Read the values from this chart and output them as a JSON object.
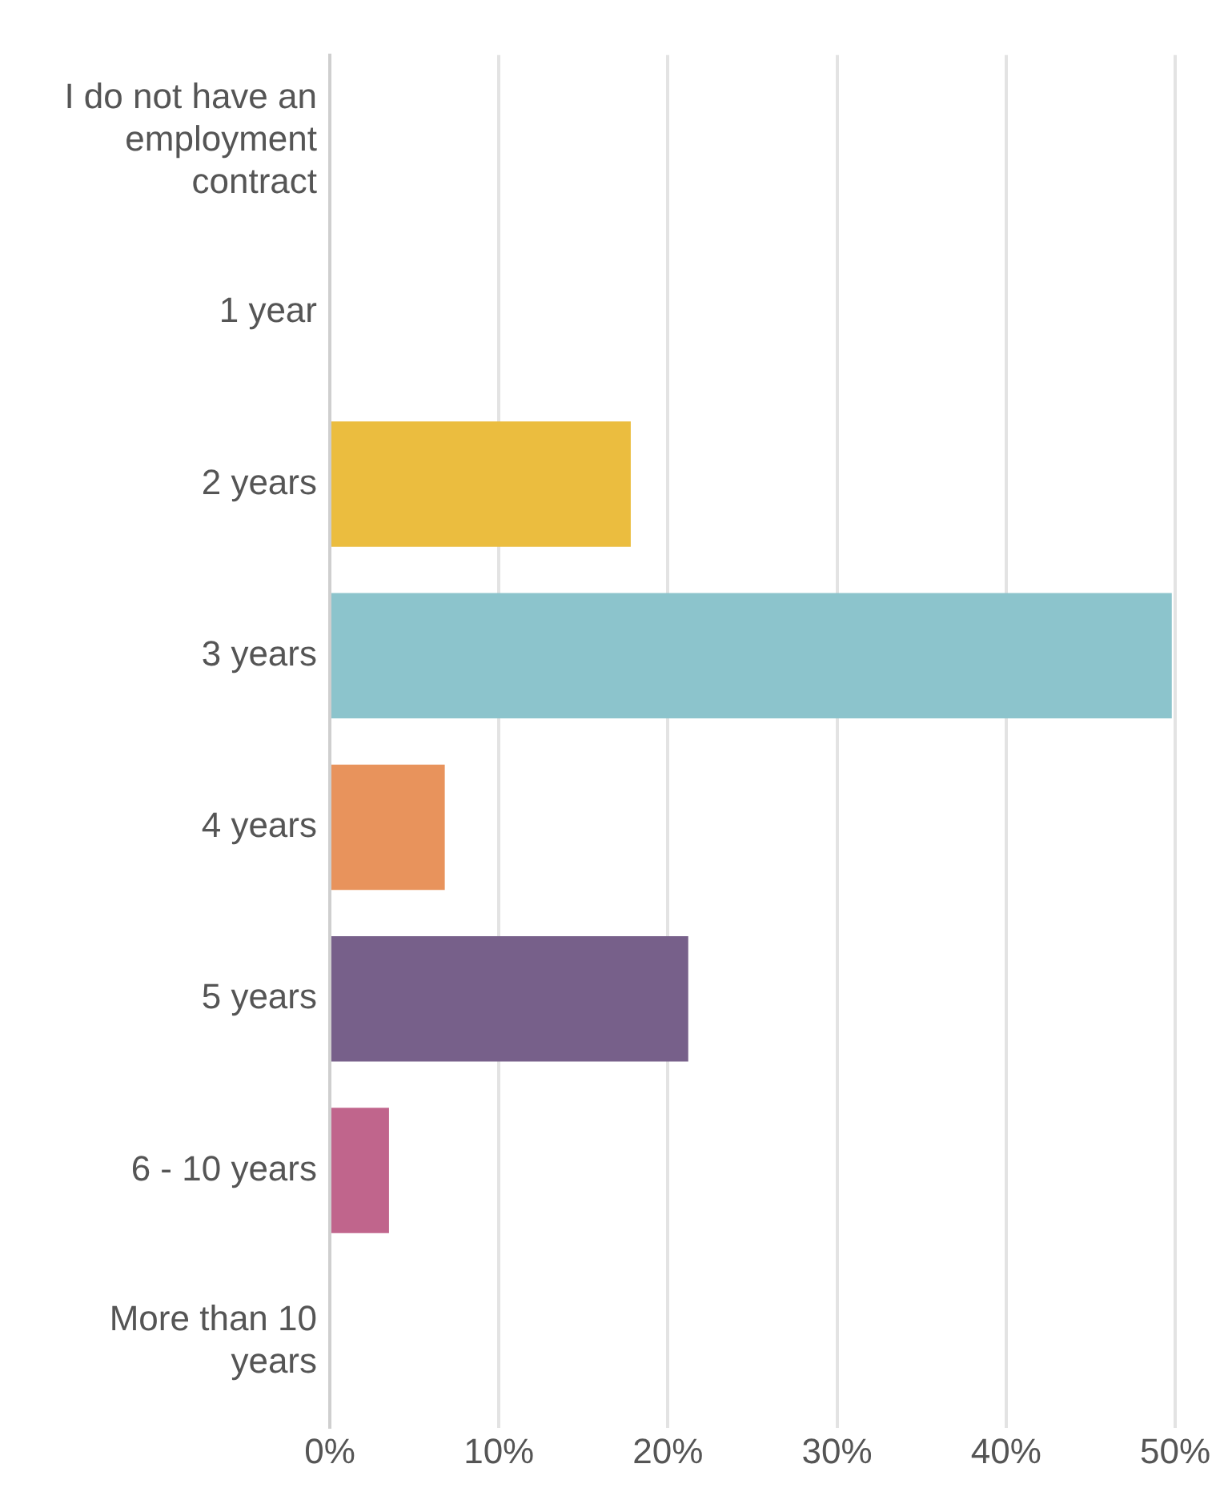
{
  "chart_data": {
    "type": "bar",
    "orientation": "horizontal",
    "categories": [
      "I do not have an employment contract",
      "1 year",
      "2 years",
      "3 years",
      "4 years",
      "5 years",
      "6 - 10 years",
      "More than 10 years"
    ],
    "values": [
      0,
      0,
      17.8,
      49.8,
      6.8,
      21.2,
      3.5,
      0
    ],
    "colors": [
      null,
      null,
      "#ebbd3f",
      "#8cc4cc",
      "#e8935c",
      "#77608a",
      "#c0658c",
      null
    ],
    "xlim": [
      0,
      50
    ],
    "xticks": [
      {
        "value": 0,
        "label": "0%"
      },
      {
        "value": 10,
        "label": "10%"
      },
      {
        "value": 20,
        "label": "20%"
      },
      {
        "value": 30,
        "label": "30%"
      },
      {
        "value": 40,
        "label": "40%"
      },
      {
        "value": 50,
        "label": "50%"
      }
    ],
    "grid": "x",
    "legend": false
  }
}
